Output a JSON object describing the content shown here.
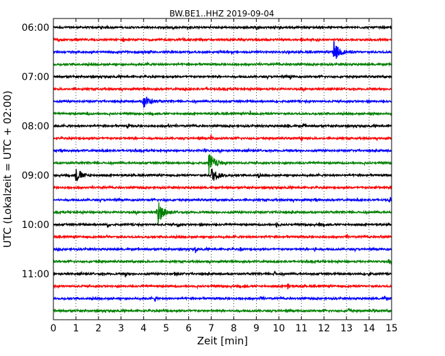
{
  "chart_data": {
    "type": "line",
    "title": "BW.BE1..HHZ 2019-09-04",
    "xlabel": "Zeit  [min]",
    "ylabel": "UTC (Lokalzeit = UTC + 02:00)",
    "xlim": [
      0,
      15
    ],
    "x_ticks": [
      "0",
      "1",
      "2",
      "3",
      "4",
      "5",
      "6",
      "7",
      "8",
      "9",
      "10",
      "11",
      "12",
      "13",
      "14",
      "15"
    ],
    "y_tick_labels": [
      "06:00",
      "07:00",
      "08:00",
      "09:00",
      "10:00",
      "11:00"
    ],
    "grid": "vertical dotted",
    "series_colors": [
      "#000000",
      "#ff0000",
      "#0000ff",
      "#008000"
    ],
    "traces": [
      {
        "start": "06:00",
        "events": [
          {
            "t": 2.1,
            "a": 0.25
          },
          {
            "t": 9.0,
            "a": 0.45
          },
          {
            "t": 9.8,
            "a": 0.25
          }
        ]
      },
      {
        "start": "06:15",
        "events": [
          {
            "t": 0.2,
            "a": 0.3
          },
          {
            "t": 3.1,
            "a": 0.25
          },
          {
            "t": 6.5,
            "a": 0.3
          },
          {
            "t": 11.0,
            "a": 0.3
          }
        ]
      },
      {
        "start": "06:30",
        "events": [
          {
            "t": 4.0,
            "a": 0.25
          },
          {
            "t": 12.4,
            "a": 1.6
          }
        ]
      },
      {
        "start": "06:45",
        "events": [
          {
            "t": 4.2,
            "a": 0.15
          },
          {
            "t": 10.5,
            "a": 0.15
          }
        ]
      },
      {
        "start": "07:00",
        "events": [
          {
            "t": 10.5,
            "a": 0.25
          }
        ]
      },
      {
        "start": "07:15",
        "events": [
          {
            "t": 5.8,
            "a": 0.25
          },
          {
            "t": 6.8,
            "a": 0.3
          }
        ]
      },
      {
        "start": "07:30",
        "events": [
          {
            "t": 4.0,
            "a": 1.0
          }
        ]
      },
      {
        "start": "07:45",
        "events": [
          {
            "t": 1.5,
            "a": 0.2
          },
          {
            "t": 8.7,
            "a": 0.45
          },
          {
            "t": 14.2,
            "a": 0.3
          }
        ]
      },
      {
        "start": "08:00",
        "events": [
          {
            "t": 3.3,
            "a": 0.25
          },
          {
            "t": 5.1,
            "a": 0.2
          },
          {
            "t": 10.4,
            "a": 0.25
          },
          {
            "t": 11.1,
            "a": 0.3
          }
        ]
      },
      {
        "start": "08:15",
        "events": [
          {
            "t": 7.0,
            "a": 0.4
          },
          {
            "t": 11.0,
            "a": 0.25
          }
        ]
      },
      {
        "start": "08:30",
        "events": [
          {
            "t": 2.4,
            "a": 0.15
          },
          {
            "t": 6.7,
            "a": 0.25
          }
        ]
      },
      {
        "start": "08:45",
        "events": [
          {
            "t": 6.9,
            "a": 1.5
          }
        ]
      },
      {
        "start": "09:00",
        "events": [
          {
            "t": 1.0,
            "a": 0.9
          },
          {
            "t": 7.0,
            "a": 1.1
          },
          {
            "t": 9.1,
            "a": 0.3
          }
        ]
      },
      {
        "start": "09:15",
        "events": [
          {
            "t": 2.2,
            "a": 0.2
          },
          {
            "t": 14.3,
            "a": 0.3
          }
        ]
      },
      {
        "start": "09:30",
        "events": [
          {
            "t": 4.9,
            "a": 0.2
          },
          {
            "t": 14.9,
            "a": 0.3
          }
        ]
      },
      {
        "start": "09:45",
        "events": [
          {
            "t": 4.6,
            "a": 1.8
          }
        ]
      },
      {
        "start": "10:00",
        "events": [
          {
            "t": 2.4,
            "a": 0.3
          },
          {
            "t": 5.5,
            "a": 0.35
          },
          {
            "t": 9.9,
            "a": 0.3
          },
          {
            "t": 11.8,
            "a": 0.3
          }
        ]
      },
      {
        "start": "10:15",
        "events": [
          {
            "t": 2.4,
            "a": 0.25
          },
          {
            "t": 13.0,
            "a": 0.2
          },
          {
            "t": 14.5,
            "a": 0.2
          }
        ]
      },
      {
        "start": "10:30",
        "events": [
          {
            "t": 0.2,
            "a": 0.2
          },
          {
            "t": 6.3,
            "a": 0.45
          },
          {
            "t": 8.3,
            "a": 0.25
          },
          {
            "t": 11.6,
            "a": 0.3
          }
        ]
      },
      {
        "start": "10:45",
        "events": [
          {
            "t": 2.0,
            "a": 0.15
          },
          {
            "t": 14.9,
            "a": 0.35
          }
        ]
      },
      {
        "start": "11:00",
        "events": [
          {
            "t": 2.1,
            "a": 0.25
          },
          {
            "t": 3.2,
            "a": 0.3
          },
          {
            "t": 5.4,
            "a": 0.4
          },
          {
            "t": 9.8,
            "a": 0.3
          },
          {
            "t": 14.0,
            "a": 0.25
          }
        ]
      },
      {
        "start": "11:15",
        "events": [
          {
            "t": 8.5,
            "a": 0.25
          },
          {
            "t": 10.4,
            "a": 0.45
          },
          {
            "t": 11.0,
            "a": 0.25
          }
        ]
      },
      {
        "start": "11:30",
        "events": [
          {
            "t": 4.5,
            "a": 0.25
          },
          {
            "t": 9.2,
            "a": 0.25
          },
          {
            "t": 14.7,
            "a": 0.3
          }
        ]
      },
      {
        "start": "11:45",
        "events": [
          {
            "t": 4.9,
            "a": 0.25
          },
          {
            "t": 13.1,
            "a": 0.35
          },
          {
            "t": 14.2,
            "a": 0.2
          }
        ]
      }
    ]
  }
}
